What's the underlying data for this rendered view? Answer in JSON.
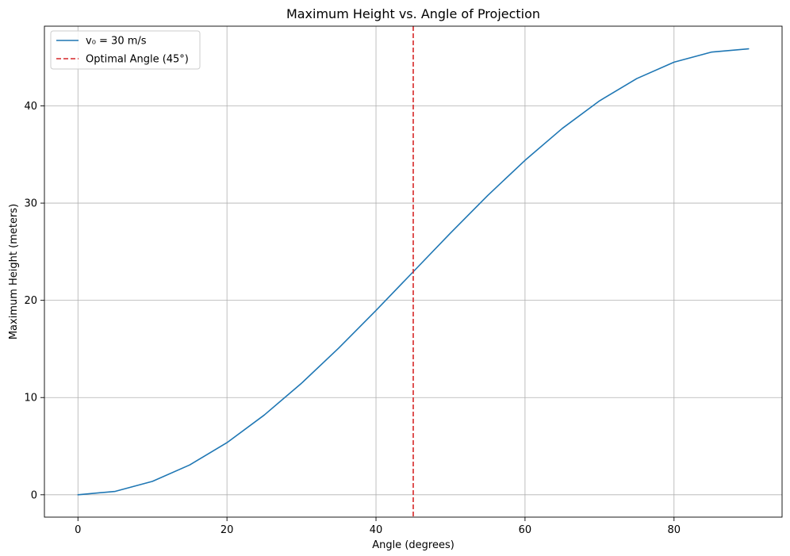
{
  "chart_data": {
    "type": "line",
    "title": "Maximum Height vs. Angle of Projection",
    "xlabel": "Angle (degrees)",
    "ylabel": "Maximum Height (meters)",
    "xlim": [
      -4.5,
      94.5
    ],
    "ylim": [
      -2.3,
      48.2
    ],
    "xticks": [
      0,
      20,
      40,
      60,
      80
    ],
    "yticks": [
      0,
      10,
      20,
      30,
      40
    ],
    "xtick_labels": [
      "0",
      "20",
      "40",
      "60",
      "80"
    ],
    "ytick_labels": [
      "0",
      "10",
      "20",
      "30",
      "40"
    ],
    "grid": true,
    "legend_position": "upper-left",
    "series": [
      {
        "name": "v₀ = 30 m/s",
        "style": "solid",
        "color": "#1f77b4",
        "x": [
          0,
          5,
          10,
          15,
          20,
          25,
          30,
          35,
          40,
          45,
          50,
          55,
          60,
          65,
          70,
          75,
          80,
          85,
          90
        ],
        "y": [
          0,
          0.35,
          1.38,
          3.07,
          5.36,
          8.2,
          11.47,
          15.09,
          18.96,
          22.94,
          26.92,
          30.79,
          34.4,
          37.68,
          40.52,
          42.81,
          44.5,
          45.53,
          45.87
        ]
      }
    ],
    "vlines": [
      {
        "name": "Optimal Angle (45°)",
        "x": 45,
        "style": "dashed",
        "color": "#d62728"
      }
    ]
  }
}
